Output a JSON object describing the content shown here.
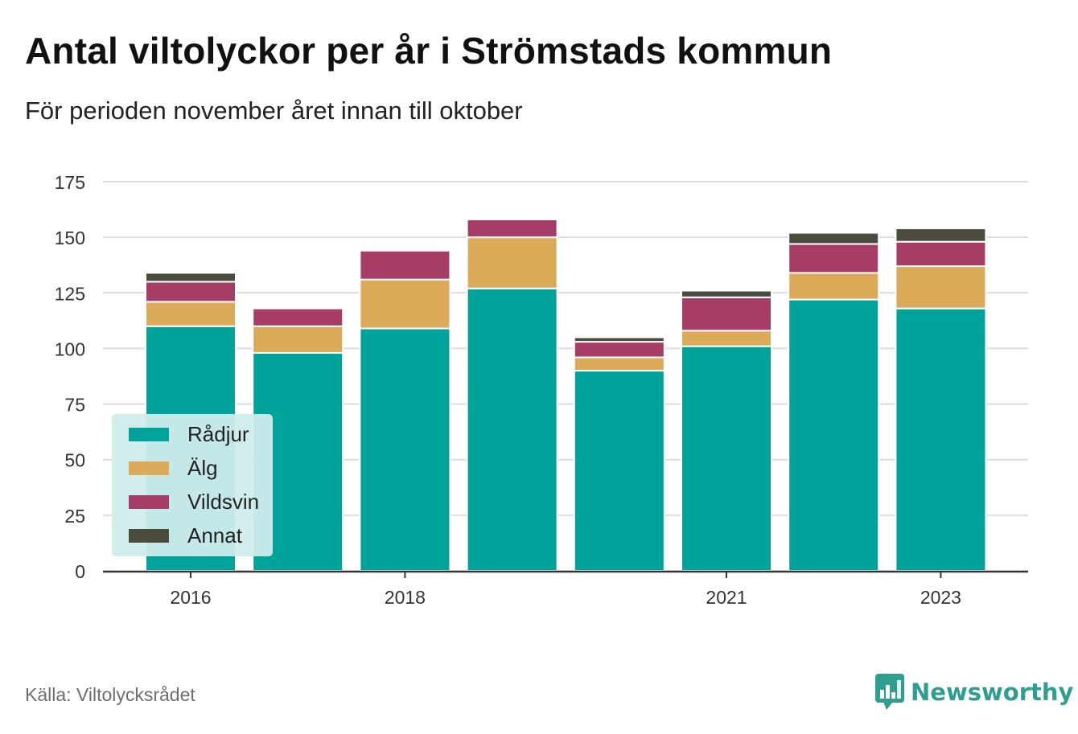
{
  "header": {
    "title": "Antal viltolyckor per år i Strömstads kommun",
    "subtitle": "För perioden november året innan till oktober"
  },
  "footer": {
    "source": "Källa: Viltolycksrådet",
    "brand": "Newsworthy"
  },
  "colors": {
    "Rådjur": "#00a39a",
    "Älg": "#dcab5a",
    "Vildsvin": "#a63d66",
    "Annat": "#4b4c3e",
    "grid": "#dddddd",
    "axis": "#333333",
    "legend_bg": "#cfeceb",
    "brand": "#2e9e8f"
  },
  "chart_data": {
    "type": "bar",
    "stacked": true,
    "categories": [
      "2016",
      "2017",
      "2018",
      "2019",
      "2020",
      "2021",
      "2022",
      "2023"
    ],
    "x_tick_labels": [
      "2016",
      "",
      "2018",
      "",
      "",
      "2021",
      "",
      "2023"
    ],
    "series": [
      {
        "name": "Rådjur",
        "values": [
          110,
          98,
          109,
          127,
          90,
          101,
          122,
          118
        ]
      },
      {
        "name": "Älg",
        "values": [
          11,
          12,
          22,
          23,
          6,
          7,
          12,
          19
        ]
      },
      {
        "name": "Vildsvin",
        "values": [
          9,
          8,
          13,
          8,
          7,
          15,
          13,
          11
        ]
      },
      {
        "name": "Annat",
        "values": [
          4,
          0,
          0,
          0,
          2,
          3,
          5,
          6
        ]
      }
    ],
    "ylim": [
      0,
      175
    ],
    "yticks": [
      0,
      25,
      50,
      75,
      100,
      125,
      150,
      175
    ],
    "grid": true,
    "legend_position": "bottom-left inside plot"
  }
}
